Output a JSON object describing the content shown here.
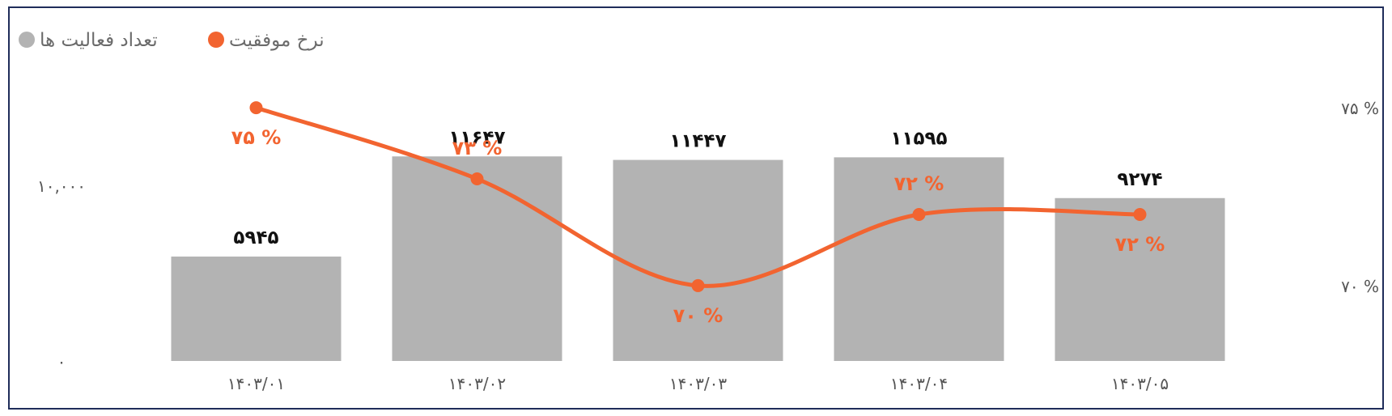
{
  "chart_data": {
    "type": "bar+line",
    "categories": [
      "۱۴۰۳/۰۱",
      "۱۴۰۳/۰۲",
      "۱۴۰۳/۰۳",
      "۱۴۰۳/۰۴",
      "۱۴۰۳/۰۵"
    ],
    "series": [
      {
        "name": "تعداد فعالیت ها",
        "type": "bar",
        "axis": "left",
        "color": "#b3b3b3",
        "values": [
          5945,
          11647,
          11447,
          11595,
          9274
        ],
        "labels": [
          "۵۹۴۵",
          "۱۱۶۴۷",
          "۱۱۴۴۷",
          "۱۱۵۹۵",
          "۹۲۷۴"
        ]
      },
      {
        "name": "نرخ موفقیت",
        "type": "line",
        "axis": "right",
        "color": "#f26430",
        "values": [
          75,
          73,
          70,
          72,
          72
        ],
        "labels": [
          "۷۵ %",
          "۷۳ %",
          "۷۰ %",
          "۷۲ %",
          "۷۲ %"
        ]
      }
    ],
    "left_axis": {
      "ylim": [
        0,
        20000
      ],
      "ticks": [
        0,
        10000
      ],
      "tick_labels": [
        "۰",
        "۱۰,۰۰۰"
      ]
    },
    "right_axis": {
      "ylim": [
        67.2,
        77.8
      ],
      "ticks": [
        70,
        75
      ],
      "tick_labels": [
        "۷۰ %",
        "۷۵ %"
      ]
    },
    "legend": {
      "position": "top-left",
      "entries": [
        {
          "label": "نرخ موفقیت",
          "color": "#f26430"
        },
        {
          "label": "تعداد فعالیت ها",
          "color": "#b3b3b3"
        }
      ]
    },
    "grid": false
  }
}
